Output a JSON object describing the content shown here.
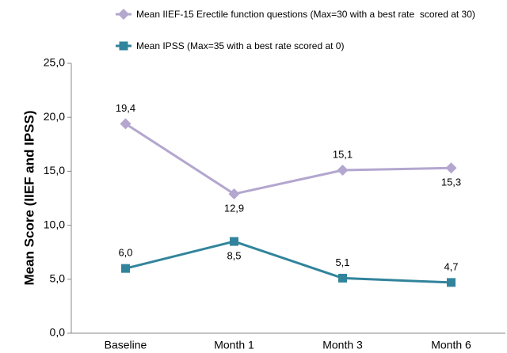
{
  "chart_data": {
    "type": "line",
    "y_label": "Mean Score (IIEF and IPSS)",
    "categories": [
      "Baseline",
      "Month 1",
      "Month 3",
      "Month 6"
    ],
    "series": [
      {
        "name": "Mean IIEF-15 Erectile function questions (Max=30 with a best rate  scored at 30)",
        "color": "#b3a6cf",
        "marker": "diamond",
        "values": [
          19.4,
          12.9,
          15.1,
          15.3
        ],
        "value_labels": [
          "19,4",
          "12,9",
          "15,1",
          "15,3"
        ]
      },
      {
        "name": "Mean IPSS (Max=35 with a best rate scored at 0)",
        "color": "#31849b",
        "marker": "square",
        "values": [
          6.0,
          8.5,
          5.1,
          4.7
        ],
        "value_labels": [
          "6,0",
          "8,5",
          "5,1",
          "4,7"
        ]
      }
    ],
    "ylim": [
      0,
      25
    ],
    "yticks": [
      {
        "value": 0,
        "label": "0,0"
      },
      {
        "value": 5,
        "label": "5,0"
      },
      {
        "value": 10,
        "label": "10,0"
      },
      {
        "value": 15,
        "label": "15,0"
      },
      {
        "value": 20,
        "label": "20,0"
      },
      {
        "value": 25,
        "label": "25,0"
      }
    ],
    "grid": false
  }
}
